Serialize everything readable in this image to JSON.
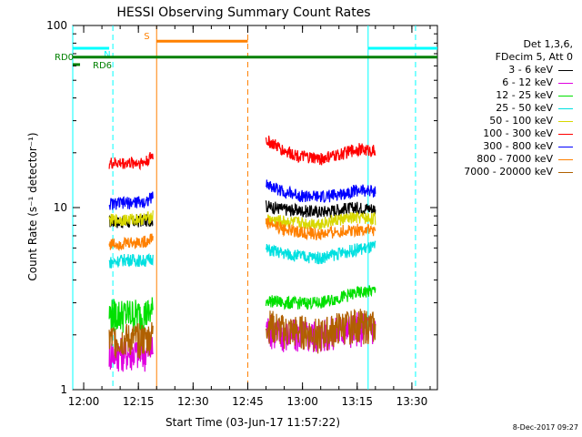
{
  "chart_data": {
    "type": "line",
    "title": "HESSI Observing Summary Count Rates",
    "xlabel": "Start Time (03-Jun-17 11:57:22)",
    "ylabel": "Count Rate (s⁻¹ detector⁻¹)",
    "y_scale": "log",
    "ylim": [
      1,
      100
    ],
    "x_start": "11:57:22",
    "xlim": [
      "11:57",
      "13:37"
    ],
    "x_ticks": [
      "12:00",
      "12:15",
      "12:30",
      "12:45",
      "13:00",
      "13:15",
      "13:30"
    ],
    "y_ticks": [
      "1",
      "10",
      "100"
    ],
    "grid": false,
    "legend_position": "right",
    "legend_header": [
      "Det 1,3,6,",
      "FDecim 5, Att 0"
    ],
    "series": [
      {
        "name": "3 - 6 keV",
        "color": "#000000",
        "x": [
          "12:07",
          "12:12",
          "12:17",
          "12:19",
          "12:50",
          "12:55",
          "13:00",
          "13:05",
          "13:10",
          "13:15",
          "13:20"
        ],
        "values": [
          8.4,
          8.3,
          8.5,
          8.6,
          10.2,
          9.8,
          9.6,
          9.5,
          9.8,
          10.0,
          9.9
        ]
      },
      {
        "name": "6 - 12 keV",
        "color": "#e000e0",
        "x": [
          "12:07",
          "12:12",
          "12:17",
          "12:19",
          "12:50",
          "12:55",
          "13:00",
          "13:05",
          "13:10",
          "13:15",
          "13:20"
        ],
        "values": [
          1.6,
          1.6,
          1.6,
          1.7,
          2.2,
          2.0,
          2.0,
          2.0,
          2.1,
          2.2,
          2.2
        ]
      },
      {
        "name": "12 - 25 keV",
        "color": "#00e000",
        "x": [
          "12:07",
          "12:12",
          "12:17",
          "12:19",
          "12:50",
          "12:55",
          "13:00",
          "13:05",
          "13:10",
          "13:15",
          "13:20"
        ],
        "values": [
          2.6,
          2.6,
          2.6,
          2.7,
          3.1,
          3.0,
          3.0,
          3.0,
          3.2,
          3.4,
          3.5
        ]
      },
      {
        "name": "25 - 50 keV",
        "color": "#00e0e0",
        "x": [
          "12:07",
          "12:12",
          "12:17",
          "12:19",
          "12:50",
          "12:55",
          "13:00",
          "13:05",
          "13:10",
          "13:15",
          "13:20"
        ],
        "values": [
          5.0,
          5.2,
          5.1,
          5.3,
          5.9,
          5.6,
          5.4,
          5.3,
          5.6,
          5.9,
          6.1
        ]
      },
      {
        "name": "50 - 100 keV",
        "color": "#d8d800",
        "x": [
          "12:07",
          "12:12",
          "12:17",
          "12:19",
          "12:50",
          "12:55",
          "13:00",
          "13:05",
          "13:10",
          "13:15",
          "13:20"
        ],
        "values": [
          8.5,
          8.6,
          8.7,
          9.0,
          8.6,
          8.4,
          8.2,
          8.2,
          8.6,
          8.8,
          8.7
        ]
      },
      {
        "name": "100 - 300 keV",
        "color": "#ff0000",
        "x": [
          "12:07",
          "12:12",
          "12:17",
          "12:19",
          "12:50",
          "12:55",
          "13:00",
          "13:05",
          "13:10",
          "13:15",
          "13:20"
        ],
        "values": [
          17.5,
          17.6,
          17.8,
          19.5,
          23.5,
          20.5,
          19.0,
          18.5,
          19.5,
          21.0,
          20.5
        ]
      },
      {
        "name": "300 - 800 keV",
        "color": "#0000ff",
        "x": [
          "12:07",
          "12:12",
          "12:17",
          "12:19",
          "12:50",
          "12:55",
          "13:00",
          "13:05",
          "13:10",
          "13:15",
          "13:20"
        ],
        "values": [
          10.5,
          10.6,
          10.8,
          11.5,
          13.5,
          12.2,
          11.6,
          11.4,
          11.8,
          12.5,
          12.3
        ]
      },
      {
        "name": "800 - 7000 keV",
        "color": "#ff8000",
        "x": [
          "12:07",
          "12:12",
          "12:17",
          "12:19",
          "12:50",
          "12:55",
          "13:00",
          "13:05",
          "13:10",
          "13:15",
          "13:20"
        ],
        "values": [
          6.3,
          6.4,
          6.5,
          6.9,
          8.3,
          7.6,
          7.3,
          7.1,
          7.4,
          7.6,
          7.5
        ]
      },
      {
        "name": "7000 - 20000 keV",
        "color": "#b06000",
        "x": [
          "12:07",
          "12:12",
          "12:17",
          "12:19",
          "12:50",
          "12:55",
          "13:00",
          "13:05",
          "13:10",
          "13:15",
          "13:20"
        ],
        "values": [
          1.9,
          1.9,
          1.9,
          2.0,
          2.3,
          2.1,
          2.1,
          2.0,
          2.2,
          2.3,
          2.2
        ]
      }
    ],
    "flags": [
      {
        "label": "N",
        "color": "#00ffff",
        "from": "11:57",
        "to": "12:07",
        "y": 75
      },
      {
        "label": "",
        "color": "#00ffff",
        "from": "13:18",
        "to": "13:37",
        "y": 75
      },
      {
        "label": "S",
        "color": "#ff8000",
        "from": "12:20",
        "to": "12:45",
        "y": 82
      },
      {
        "label": "RD0",
        "color": "#008000",
        "from": "11:57",
        "to": "13:37",
        "y": 67
      },
      {
        "label": "RD6",
        "color": "#008000",
        "from": "11:57",
        "to": "11:59",
        "y": 61
      }
    ],
    "vertical_markers": [
      {
        "time": "11:57",
        "color": "#00ffff",
        "style": "solid"
      },
      {
        "time": "12:08",
        "color": "#00ffff",
        "style": "dashed"
      },
      {
        "time": "12:20",
        "color": "#ff8000",
        "style": "solid"
      },
      {
        "time": "12:45",
        "color": "#ff8000",
        "style": "dashed"
      },
      {
        "time": "13:18",
        "color": "#00ffff",
        "style": "solid"
      },
      {
        "time": "13:31",
        "color": "#00ffff",
        "style": "dashed"
      }
    ]
  },
  "footer_stamp": "8-Dec-2017 09:27"
}
